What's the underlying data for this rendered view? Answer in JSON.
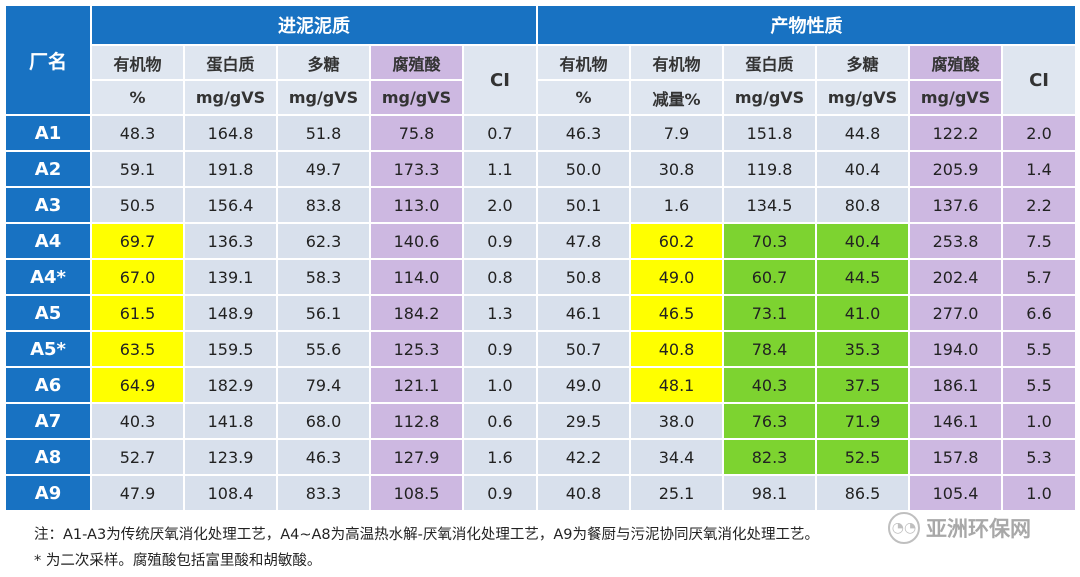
{
  "header": {
    "corner": "厂名",
    "group_inlet": "进泥泥质",
    "group_product": "产物性质",
    "inlet_cols": [
      {
        "line1": "有机物",
        "line2": "%"
      },
      {
        "line1": "蛋白质",
        "line2": "mg/gVS"
      },
      {
        "line1": "多糖",
        "line2": "mg/gVS"
      },
      {
        "line1": "腐殖酸",
        "line2": "mg/gVS"
      },
      {
        "line1": "CI",
        "line2": ""
      }
    ],
    "product_cols": [
      {
        "line1": "有机物",
        "line2": "%"
      },
      {
        "line1": "有机物",
        "line2": "减量%"
      },
      {
        "line1": "蛋白质",
        "line2": "mg/gVS"
      },
      {
        "line1": "多糖",
        "line2": "mg/gVS"
      },
      {
        "line1": "腐殖酸",
        "line2": "mg/gVS"
      },
      {
        "line1": "CI",
        "line2": ""
      }
    ]
  },
  "rows": [
    {
      "name": "A1",
      "inlet": [
        "48.3",
        "164.8",
        "51.8",
        "75.8",
        "0.7"
      ],
      "product": [
        "46.3",
        "7.9",
        "151.8",
        "44.8",
        "122.2",
        "2.0"
      ]
    },
    {
      "name": "A2",
      "inlet": [
        "59.1",
        "191.8",
        "49.7",
        "173.3",
        "1.1"
      ],
      "product": [
        "50.0",
        "30.8",
        "119.8",
        "40.4",
        "205.9",
        "1.4"
      ]
    },
    {
      "name": "A3",
      "inlet": [
        "50.5",
        "156.4",
        "83.8",
        "113.0",
        "2.0"
      ],
      "product": [
        "50.1",
        "1.6",
        "134.5",
        "80.8",
        "137.6",
        "2.2"
      ]
    },
    {
      "name": "A4",
      "inlet": [
        "69.7",
        "136.3",
        "62.3",
        "140.6",
        "0.9"
      ],
      "product": [
        "47.8",
        "60.2",
        "70.3",
        "40.4",
        "253.8",
        "7.5"
      ]
    },
    {
      "name": "A4*",
      "inlet": [
        "67.0",
        "139.1",
        "58.3",
        "114.0",
        "0.8"
      ],
      "product": [
        "50.8",
        "49.0",
        "60.7",
        "44.5",
        "202.4",
        "5.7"
      ]
    },
    {
      "name": "A5",
      "inlet": [
        "61.5",
        "148.9",
        "56.1",
        "184.2",
        "1.3"
      ],
      "product": [
        "46.1",
        "46.5",
        "73.1",
        "41.0",
        "277.0",
        "6.6"
      ]
    },
    {
      "name": "A5*",
      "inlet": [
        "63.5",
        "159.5",
        "55.6",
        "125.3",
        "0.9"
      ],
      "product": [
        "50.7",
        "40.8",
        "78.4",
        "35.3",
        "194.0",
        "5.5"
      ]
    },
    {
      "name": "A6",
      "inlet": [
        "64.9",
        "182.9",
        "79.4",
        "121.1",
        "1.0"
      ],
      "product": [
        "49.0",
        "48.1",
        "40.3",
        "37.5",
        "186.1",
        "5.5"
      ]
    },
    {
      "name": "A7",
      "inlet": [
        "40.3",
        "141.8",
        "68.0",
        "112.8",
        "0.6"
      ],
      "product": [
        "29.5",
        "38.0",
        "76.3",
        "71.9",
        "146.1",
        "1.0"
      ]
    },
    {
      "name": "A8",
      "inlet": [
        "52.7",
        "123.9",
        "46.3",
        "127.9",
        "1.6"
      ],
      "product": [
        "42.2",
        "34.4",
        "82.3",
        "52.5",
        "157.8",
        "5.3"
      ]
    },
    {
      "name": "A9",
      "inlet": [
        "47.9",
        "108.4",
        "83.3",
        "108.5",
        "0.9"
      ],
      "product": [
        "40.8",
        "25.1",
        "98.1",
        "86.5",
        "105.4",
        "1.0"
      ]
    }
  ],
  "highlight_colors": {
    "yellow": "#ffff00",
    "green": "#7dd330",
    "humic": "#cdb8e1",
    "header": "#1872c2"
  },
  "notes": {
    "line1": "注：A1-A3为传统厌氧消化处理工艺，A4~A8为高温热水解-厌氧消化处理工艺，A9为餐厨与污泥协同厌氧消化处理工艺。",
    "line2": "* 为二次采样。腐殖酸包括富里酸和胡敏酸。"
  },
  "watermark": {
    "icon": "wechat-icon",
    "text": "亚洲环保网"
  }
}
